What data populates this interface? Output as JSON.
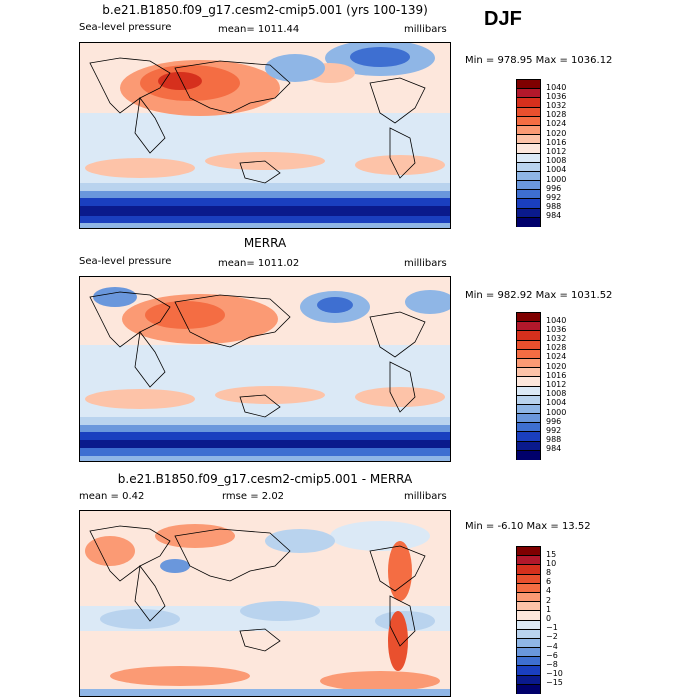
{
  "season": "DJF",
  "panels": [
    {
      "title": "b.e21.B1850.f09_g17.cesm2-cmip5.001 (yrs 100-139)",
      "left_label": "Sea-level pressure",
      "mid_label": "mean= 1011.44",
      "right_label": "millibars",
      "stats": "Min = 978.95 Max = 1036.12",
      "colorbar": {
        "labels": [
          "1040",
          "1036",
          "1032",
          "1028",
          "1024",
          "1020",
          "1016",
          "1012",
          "1008",
          "1004",
          "1000",
          "996",
          "992",
          "988",
          "984"
        ],
        "colors": [
          "#7f0000",
          "#b2182b",
          "#d6301d",
          "#e9502e",
          "#f46d43",
          "#fb9a74",
          "#fdc3a8",
          "#fde7dc",
          "#dbe9f6",
          "#b9d3ee",
          "#8fb6e6",
          "#6a97dc",
          "#3e6fd1",
          "#1a3fbf",
          "#0a1a8c",
          "#00006b"
        ]
      }
    },
    {
      "title": "MERRA",
      "left_label": "Sea-level pressure",
      "mid_label": "mean= 1011.02",
      "right_label": "millibars",
      "stats": "Min = 982.92 Max = 1031.52",
      "colorbar": {
        "labels": [
          "1040",
          "1036",
          "1032",
          "1028",
          "1024",
          "1020",
          "1016",
          "1012",
          "1008",
          "1004",
          "1000",
          "996",
          "992",
          "988",
          "984"
        ],
        "colors": [
          "#7f0000",
          "#b2182b",
          "#d6301d",
          "#e9502e",
          "#f46d43",
          "#fb9a74",
          "#fdc3a8",
          "#fde7dc",
          "#dbe9f6",
          "#b9d3ee",
          "#8fb6e6",
          "#6a97dc",
          "#3e6fd1",
          "#1a3fbf",
          "#0a1a8c",
          "#00006b"
        ]
      }
    },
    {
      "title": "b.e21.B1850.f09_g17.cesm2-cmip5.001 - MERRA",
      "left_label": "mean =   0.42",
      "mid_label": "rmse =   2.02",
      "right_label": "millibars",
      "stats": "Min =  -6.10 Max =  13.52",
      "colorbar": {
        "labels": [
          "15",
          "10",
          "8",
          "6",
          "4",
          "2",
          "1",
          "0",
          "−1",
          "−2",
          "−4",
          "−6",
          "−8",
          "−10",
          "−15"
        ],
        "colors": [
          "#7f0000",
          "#b2182b",
          "#d6301d",
          "#e9502e",
          "#f46d43",
          "#fb9a74",
          "#fdc3a8",
          "#fde7dc",
          "#dbe9f6",
          "#b9d3ee",
          "#8fb6e6",
          "#6a97dc",
          "#3e6fd1",
          "#1a3fbf",
          "#0a1a8c",
          "#00006b"
        ]
      }
    }
  ],
  "chart_data": {
    "type": "heatmap",
    "figure": "DJF sea-level pressure maps",
    "panels": [
      {
        "title": "b.e21.B1850.f09_g17.cesm2-cmip5.001 (yrs 100-139)",
        "variable": "Sea-level pressure",
        "units": "millibars",
        "mean": 1011.44,
        "min": 978.95,
        "max": 1036.12,
        "levels": [
          984,
          988,
          992,
          996,
          1000,
          1004,
          1008,
          1012,
          1016,
          1020,
          1024,
          1028,
          1032,
          1036,
          1040
        ]
      },
      {
        "title": "MERRA",
        "variable": "Sea-level pressure",
        "units": "millibars",
        "mean": 1011.02,
        "min": 982.92,
        "max": 1031.52,
        "levels": [
          984,
          988,
          992,
          996,
          1000,
          1004,
          1008,
          1012,
          1016,
          1020,
          1024,
          1028,
          1032,
          1036,
          1040
        ]
      },
      {
        "title": "b.e21.B1850.f09_g17.cesm2-cmip5.001 - MERRA",
        "units": "millibars",
        "mean": 0.42,
        "rmse": 2.02,
        "min": -6.1,
        "max": 13.52,
        "levels": [
          -15,
          -10,
          -8,
          -6,
          -4,
          -2,
          -1,
          0,
          1,
          2,
          4,
          6,
          8,
          10,
          15
        ]
      }
    ]
  }
}
